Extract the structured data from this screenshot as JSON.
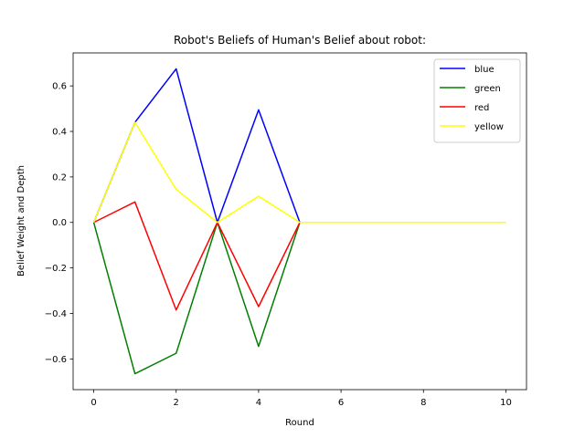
{
  "chart_data": {
    "type": "line",
    "title": "Robot's Beliefs of Human's Belief about robot:",
    "xlabel": "Round",
    "ylabel": "Belief Weight and Depth",
    "x": [
      0,
      1,
      2,
      3,
      4,
      5,
      6,
      7,
      8,
      9,
      10
    ],
    "xlim": [
      -0.5,
      10.5
    ],
    "ylim": [
      -0.735,
      0.745
    ],
    "xticks": [
      0,
      2,
      4,
      6,
      8,
      10
    ],
    "yticks": [
      -0.6,
      -0.4,
      -0.2,
      0.0,
      0.2,
      0.4,
      0.6
    ],
    "xtick_labels": [
      "0",
      "2",
      "4",
      "6",
      "8",
      "10"
    ],
    "ytick_labels": [
      "−0.6",
      "−0.4",
      "−0.2",
      "0.0",
      "0.2",
      "0.4",
      "0.6"
    ],
    "grid": false,
    "legend_position": "top-right",
    "series": [
      {
        "name": "blue",
        "color": "#0000ff",
        "values": [
          0.0,
          0.44,
          0.675,
          0.0,
          0.495,
          0.0,
          0.0,
          0.0,
          0.0,
          0.0,
          0.0
        ]
      },
      {
        "name": "green",
        "color": "#008000",
        "values": [
          0.0,
          -0.665,
          -0.575,
          0.0,
          -0.545,
          0.0,
          0.0,
          0.0,
          0.0,
          0.0,
          0.0
        ]
      },
      {
        "name": "red",
        "color": "#ff0000",
        "values": [
          0.0,
          0.09,
          -0.385,
          0.0,
          -0.37,
          0.0,
          0.0,
          0.0,
          0.0,
          0.0,
          0.0
        ]
      },
      {
        "name": "yellow",
        "color": "#ffff00",
        "values": [
          0.0,
          0.44,
          0.145,
          0.0,
          0.115,
          0.0,
          0.0,
          0.0,
          0.0,
          0.0,
          0.0
        ]
      }
    ]
  }
}
